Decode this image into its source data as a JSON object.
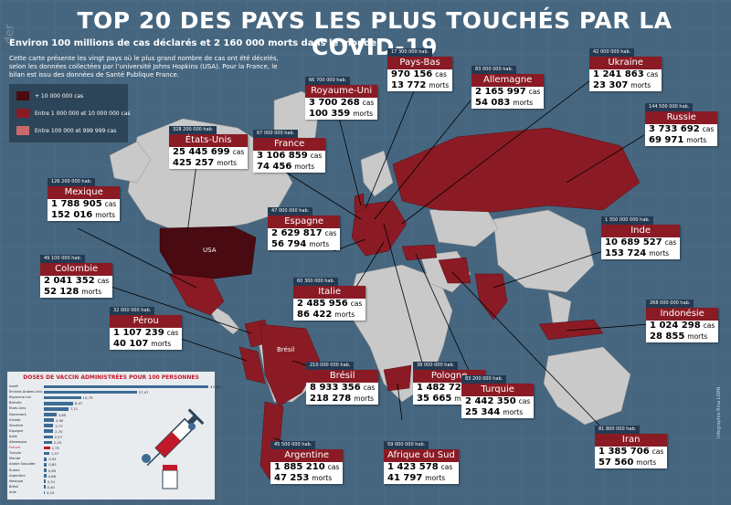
{
  "title": "TOP 20 DES PAYS LES PLUS TOUCHÉS PAR LA COVID-19",
  "subtitle": "Environ 100 millions de cas déclarés et 2 160 000 morts dans le monde",
  "intro": "Cette carte présente les vingt pays où le plus grand nombre de cas ont été décelés, selon les données collectées par l’université Johns Hopkins (USA). Pour la France, le bilan est issu des données de Santé Publique France.",
  "legend": [
    {
      "label": "+ 10 000 000 cas",
      "color": "#4a0a12"
    },
    {
      "label": "Entre 1 000 000 et 10 000 000 cas",
      "color": "#8a1b25"
    },
    {
      "label": "Entre 100 000 et 999 999 cas",
      "color": "#c96a6a"
    }
  ],
  "map_labels": {
    "usa": "USA",
    "bresil": "Brésil"
  },
  "units": {
    "cas": "cas",
    "morts": "morts"
  },
  "countries": [
    {
      "id": "etats-unis",
      "name": "États-Unis",
      "pop": "328 200 000 hab.",
      "cas": "25 445 699",
      "morts": "425 257"
    },
    {
      "id": "france",
      "name": "France",
      "pop": "67 000 000 hab.",
      "cas": "3 106 859",
      "morts": "74 456"
    },
    {
      "id": "royaume-uni",
      "name": "Royaume-Uni",
      "pop": "66 700 000 hab.",
      "cas": "3 700 268",
      "morts": "100 359"
    },
    {
      "id": "pays-bas",
      "name": "Pays-Bas",
      "pop": "17 300 000 hab.",
      "cas": "970 156",
      "morts": "13 772"
    },
    {
      "id": "allemagne",
      "name": "Allemagne",
      "pop": "83 000 000 hab.",
      "cas": "2 165 997",
      "morts": "54 083"
    },
    {
      "id": "ukraine",
      "name": "Ukraine",
      "pop": "42 000 000 hab.",
      "cas": "1 241 863",
      "morts": "23 307"
    },
    {
      "id": "russie",
      "name": "Russie",
      "pop": "144 500 000 hab.",
      "cas": "3 733 692",
      "morts": "69 971"
    },
    {
      "id": "mexique",
      "name": "Mexique",
      "pop": "126 200 000 hab.",
      "cas": "1 788 905",
      "morts": "152 016"
    },
    {
      "id": "espagne",
      "name": "Espagne",
      "pop": "47 000 000 hab.",
      "cas": "2 629 817",
      "morts": "56 794"
    },
    {
      "id": "inde",
      "name": "Inde",
      "pop": "1 350 000 000 hab.",
      "cas": "10 689 527",
      "morts": "153 724"
    },
    {
      "id": "colombie",
      "name": "Colombie",
      "pop": "49 100 000 hab.",
      "cas": "2 041 352",
      "morts": "52 128"
    },
    {
      "id": "italie",
      "name": "Italie",
      "pop": "60 300 000 hab.",
      "cas": "2 485 956",
      "morts": "86 422"
    },
    {
      "id": "indonesie",
      "name": "Indonésie",
      "pop": "268 000 000 hab.",
      "cas": "1 024 298",
      "morts": "28 855"
    },
    {
      "id": "perou",
      "name": "Pérou",
      "pop": "32 000 000 hab.",
      "cas": "1 107 239",
      "morts": "40 107"
    },
    {
      "id": "bresil",
      "name": "Brésil",
      "pop": "210 000 000 hab.",
      "cas": "8 933 356",
      "morts": "218 278"
    },
    {
      "id": "pologne",
      "name": "Pologne",
      "pop": "38 000 000 hab.",
      "cas": "1 482 722",
      "morts": "35 665"
    },
    {
      "id": "turquie",
      "name": "Turquie",
      "pop": "83 200 000 hab.",
      "cas": "2 442 350",
      "morts": "25 344"
    },
    {
      "id": "iran",
      "name": "Iran",
      "pop": "81 800 000 hab.",
      "cas": "1 385 706",
      "morts": "57 560"
    },
    {
      "id": "argentine",
      "name": "Argentine",
      "pop": "45 500 000 hab.",
      "cas": "1 885 210",
      "morts": "47 253"
    },
    {
      "id": "afrique-du-sud",
      "name": "Afrique du Sud",
      "pop": "59 000 000 hab.",
      "cas": "1 423 578",
      "morts": "41 797"
    }
  ],
  "vaccine": {
    "title": "DOSES DE VACCIN ADMINISTRÉES POUR 100 PERSONNES",
    "highlight_color": "#c0192a",
    "bar_color": "#3d6b94",
    "max": 47.9,
    "rows": [
      {
        "label": "Israël",
        "value": 47.9,
        "text": "47,90"
      },
      {
        "label": "Émirats Arabes Unis",
        "value": 27.07,
        "text": "27,07"
      },
      {
        "label": "Royaume-Uni",
        "value": 10.79,
        "text": "10,79"
      },
      {
        "label": "Bahreïn",
        "value": 8.47,
        "text": "8,47"
      },
      {
        "label": "États-Unis",
        "value": 7.11,
        "text": "7,11"
      },
      {
        "label": "Danemark",
        "value": 3.65,
        "text": "3,65"
      },
      {
        "label": "Irlande",
        "value": 2.9,
        "text": "2,90"
      },
      {
        "label": "Slovénie",
        "value": 2.77,
        "text": "2,77"
      },
      {
        "label": "Espagne",
        "value": 2.7,
        "text": "2,70"
      },
      {
        "label": "Italie",
        "value": 2.57,
        "text": "2,57"
      },
      {
        "label": "Allemagne",
        "value": 2.29,
        "text": "2,29"
      },
      {
        "label": "France",
        "value": 1.75,
        "text": "1,75",
        "highlight": true
      },
      {
        "label": "Turquie",
        "value": 1.57,
        "text": "1,57"
      },
      {
        "label": "Monde",
        "value": 0.91,
        "text": "0,91"
      },
      {
        "label": "Arabie Saoudite",
        "value": 0.85,
        "text": "0,85"
      },
      {
        "label": "Russie",
        "value": 0.69,
        "text": "0,69"
      },
      {
        "label": "Argentine",
        "value": 0.68,
        "text": "0,68"
      },
      {
        "label": "Mexique",
        "value": 0.51,
        "text": "0,51"
      },
      {
        "label": "Brésil",
        "value": 0.4,
        "text": "0,40"
      },
      {
        "label": "Inde",
        "value": 0.15,
        "text": "0,15"
      }
    ]
  },
  "credit": "Infographie Rina LOAN",
  "watermark": "der"
}
